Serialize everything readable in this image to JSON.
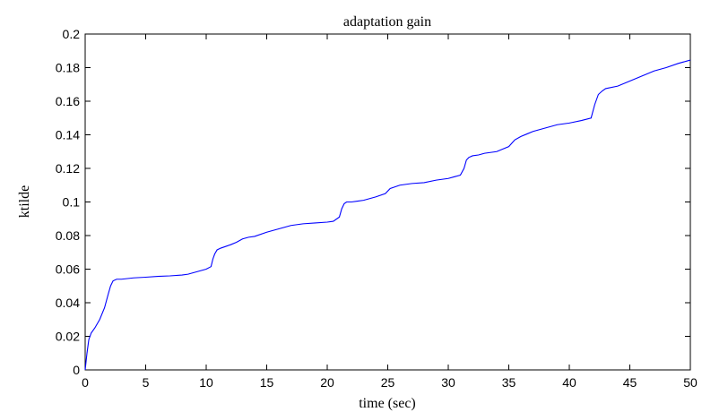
{
  "chart_data": {
    "type": "line",
    "title": "adaptation gain",
    "xlabel": "time (sec)",
    "ylabel": "ktilde",
    "xlim": [
      0,
      50
    ],
    "ylim": [
      0,
      0.2
    ],
    "xticks": [
      0,
      5,
      10,
      15,
      20,
      25,
      30,
      35,
      40,
      45,
      50
    ],
    "yticks": [
      0,
      0.02,
      0.04,
      0.06,
      0.08,
      0.1,
      0.12,
      0.14,
      0.16,
      0.18,
      0.2
    ],
    "xtick_labels": [
      "0",
      "5",
      "10",
      "15",
      "20",
      "25",
      "30",
      "35",
      "40",
      "45",
      "50"
    ],
    "ytick_labels": [
      "0",
      "0.02",
      "0.04",
      "0.06",
      "0.08",
      "0.1",
      "0.12",
      "0.14",
      "0.16",
      "0.18",
      "0.2"
    ],
    "grid": false,
    "line_color": "#0000ff",
    "series": [
      {
        "x": [
          0,
          0.15,
          0.3,
          0.5,
          0.8,
          1.2,
          1.6,
          1.9,
          2.1,
          2.3,
          2.6,
          3,
          4,
          5,
          6,
          7,
          8,
          8.5,
          9,
          9.5,
          10,
          10.4,
          10.55,
          10.7,
          10.9,
          11.2,
          11.6,
          12,
          12.5,
          13,
          13.5,
          14,
          15,
          16,
          17,
          18,
          19,
          20,
          20.5,
          21,
          21.2,
          21.4,
          21.6,
          22,
          22.5,
          23,
          24,
          24.8,
          25.2,
          25.6,
          26,
          27,
          28,
          29,
          30,
          31,
          31.3,
          31.5,
          31.7,
          32,
          32.5,
          33,
          34,
          35,
          35.5,
          36,
          36.5,
          37,
          38,
          39,
          40,
          41,
          41.8,
          42.1,
          42.4,
          42.7,
          43,
          44,
          45,
          46,
          47,
          48,
          49,
          50
        ],
        "y": [
          0,
          0.01,
          0.018,
          0.022,
          0.025,
          0.03,
          0.037,
          0.045,
          0.05,
          0.053,
          0.054,
          0.054,
          0.0548,
          0.0552,
          0.0557,
          0.056,
          0.0565,
          0.057,
          0.058,
          0.059,
          0.06,
          0.0615,
          0.066,
          0.069,
          0.0715,
          0.0725,
          0.0735,
          0.0745,
          0.076,
          0.078,
          0.079,
          0.0795,
          0.082,
          0.084,
          0.086,
          0.087,
          0.0875,
          0.088,
          0.0885,
          0.091,
          0.096,
          0.099,
          0.1,
          0.1,
          0.1005,
          0.101,
          0.103,
          0.105,
          0.108,
          0.109,
          0.11,
          0.111,
          0.1115,
          0.113,
          0.114,
          0.116,
          0.12,
          0.125,
          0.1265,
          0.1275,
          0.128,
          0.129,
          0.13,
          0.133,
          0.137,
          0.139,
          0.1405,
          0.142,
          0.144,
          0.146,
          0.147,
          0.1485,
          0.15,
          0.158,
          0.164,
          0.166,
          0.1675,
          0.169,
          0.172,
          0.175,
          0.178,
          0.18,
          0.1825,
          0.1845
        ]
      }
    ]
  }
}
